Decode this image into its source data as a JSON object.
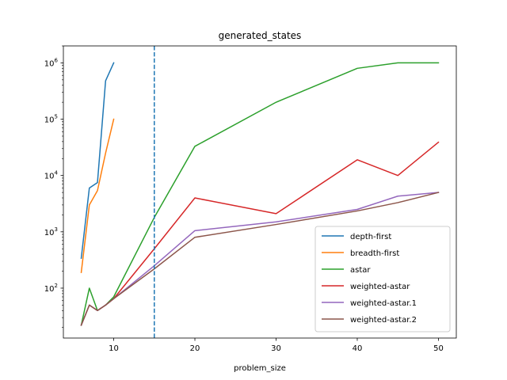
{
  "chart_data": {
    "type": "line",
    "title": "generated_states",
    "xlabel": "problem_size",
    "ylabel": "",
    "yscale": "log",
    "xlim": [
      3.8,
      52.2
    ],
    "ylim": [
      13,
      2000000
    ],
    "x_ticks": [
      10,
      20,
      30,
      40,
      50
    ],
    "y_ticks": [
      {
        "value": 100,
        "base": "10",
        "exp": "2"
      },
      {
        "value": 1000,
        "base": "10",
        "exp": "3"
      },
      {
        "value": 10000,
        "base": "10",
        "exp": "4"
      },
      {
        "value": 100000,
        "base": "10",
        "exp": "5"
      },
      {
        "value": 1000000,
        "base": "10",
        "exp": "6"
      }
    ],
    "grid": false,
    "legend_position": "lower-right",
    "reference_line": {
      "x": 15,
      "style": "dashed",
      "color": "#1f77b4"
    },
    "series": [
      {
        "name": "depth-first",
        "color": "#1f77b4",
        "x": [
          6,
          7,
          8,
          9,
          10
        ],
        "y": [
          340,
          6000,
          7500,
          480000,
          1000000
        ]
      },
      {
        "name": "breadth-first",
        "color": "#ff7f0e",
        "x": [
          6,
          7,
          8,
          9,
          10
        ],
        "y": [
          190,
          3000,
          5400,
          25000,
          100000
        ]
      },
      {
        "name": "astar",
        "color": "#2ca02c",
        "x": [
          6,
          7,
          8,
          9,
          10,
          15,
          20,
          30,
          40,
          45,
          50
        ],
        "y": [
          22,
          100,
          40,
          50,
          70,
          1800,
          33000,
          200000,
          800000,
          1000000,
          1000000
        ]
      },
      {
        "name": "weighted-astar",
        "color": "#d62728",
        "x": [
          6,
          7,
          8,
          9,
          10,
          15,
          20,
          30,
          40,
          45,
          50
        ],
        "y": [
          22,
          50,
          40,
          50,
          65,
          500,
          4000,
          2100,
          19000,
          10000,
          39000
        ]
      },
      {
        "name": "weighted-astar.1",
        "color": "#9467bd",
        "x": [
          6,
          7,
          8,
          9,
          10,
          15,
          20,
          30,
          40,
          45,
          50
        ],
        "y": [
          22,
          50,
          40,
          50,
          65,
          250,
          1050,
          1500,
          2500,
          4300,
          5000
        ]
      },
      {
        "name": "weighted-astar.2",
        "color": "#8c564b",
        "x": [
          6,
          7,
          8,
          9,
          10,
          15,
          20,
          30,
          40,
          45,
          50
        ],
        "y": [
          22,
          50,
          40,
          50,
          65,
          220,
          800,
          1350,
          2350,
          3300,
          5000
        ]
      }
    ]
  }
}
